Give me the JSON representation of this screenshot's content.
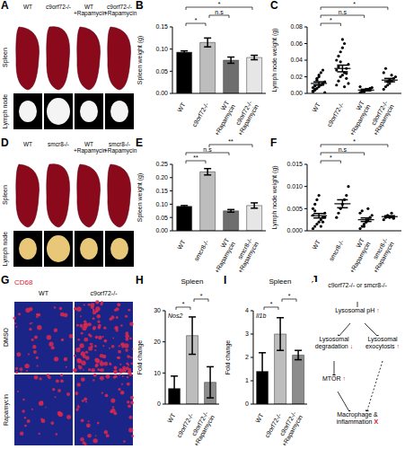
{
  "chart_data": [
    {
      "panel": "B",
      "type": "bar",
      "categories": [
        "WT",
        "c9orf72-/-",
        "WT +Rapamycin",
        "c9orf72-/- +Rapamycin"
      ],
      "values": [
        0.093,
        0.115,
        0.075,
        0.081
      ],
      "errors": [
        0.003,
        0.01,
        0.007,
        0.005
      ],
      "colors": [
        "#000000",
        "#bdbdbd",
        "#6e6e6e",
        "#e6e6e6"
      ],
      "ylabel": "Spleen weight (g)",
      "ylim": [
        0,
        0.15
      ],
      "yticks": [
        {
          "value": 0,
          "label": "0.00"
        },
        {
          "value": 0.05,
          "label": "0.05"
        },
        {
          "value": 0.1,
          "label": "0.10"
        },
        {
          "value": 0.15,
          "label": "0.15"
        }
      ],
      "significance": [
        {
          "from": 0,
          "to": 1,
          "label": "*"
        },
        {
          "from": 1,
          "to": 2,
          "label": "n.s"
        },
        {
          "from": 0,
          "to": 3,
          "label": "*"
        }
      ]
    },
    {
      "panel": "C",
      "type": "scatter",
      "categories": [
        "WT",
        "c9orf72-/-",
        "WT +Rapamycin",
        "c9orf72-/- +Rapamycin"
      ],
      "points": [
        [
          0.002,
          0.004,
          0.006,
          0.008,
          0.01,
          0.012,
          0.014,
          0.003,
          0.005,
          0.018,
          0.022,
          0.025,
          0.028,
          0.001,
          0.007,
          0.009,
          0.016,
          0.02
        ],
        [
          0.01,
          0.015,
          0.02,
          0.022,
          0.025,
          0.03,
          0.035,
          0.04,
          0.045,
          0.05,
          0.055,
          0.06,
          0.018,
          0.012,
          0.028,
          0.032,
          0.038,
          0.065,
          0.008,
          0.024
        ],
        [
          0.001,
          0.002,
          0.003,
          0.004,
          0.005,
          0.006,
          0.007,
          0.008,
          0.003,
          0.002,
          0.005,
          0.004
        ],
        [
          0.005,
          0.008,
          0.01,
          0.012,
          0.015,
          0.018,
          0.02,
          0.025,
          0.03,
          0.014,
          0.016,
          0.022
        ]
      ],
      "mean": [
        0.012,
        0.03,
        0.004,
        0.016
      ],
      "sem": [
        0.002,
        0.004,
        0.001,
        0.002
      ],
      "color": "#000000",
      "ylabel": "Lymph node weight (g)",
      "ylim": [
        0,
        0.08
      ],
      "yticks": [
        {
          "value": 0,
          "label": "0.00"
        },
        {
          "value": 0.02,
          "label": "0.02"
        },
        {
          "value": 0.04,
          "label": "0.04"
        },
        {
          "value": 0.06,
          "label": "0.06"
        },
        {
          "value": 0.08,
          "label": "0.08"
        }
      ],
      "significance": [
        {
          "from": 0,
          "to": 1,
          "label": "*"
        },
        {
          "from": 0,
          "to": 2,
          "label": "n.s"
        },
        {
          "from": 0,
          "to": 3,
          "label": "*"
        }
      ]
    },
    {
      "panel": "E",
      "type": "bar",
      "categories": [
        "WT",
        "smcr8-/-",
        "WT +Rapamycin",
        "smcr8-/- +Rapamycin"
      ],
      "values": [
        0.092,
        0.222,
        0.075,
        0.095
      ],
      "errors": [
        0.003,
        0.012,
        0.005,
        0.01
      ],
      "colors": [
        "#000000",
        "#bdbdbd",
        "#6e6e6e",
        "#e6e6e6"
      ],
      "ylabel": "Spleen weight (g)",
      "ylim": [
        0,
        0.25
      ],
      "yticks": [
        {
          "value": 0,
          "label": "0.00"
        },
        {
          "value": 0.05,
          "label": "0.05"
        },
        {
          "value": 0.1,
          "label": "0.10"
        },
        {
          "value": 0.15,
          "label": "0.15"
        },
        {
          "value": 0.2,
          "label": "0.20"
        },
        {
          "value": 0.25,
          "label": "0.25"
        }
      ],
      "significance": [
        {
          "from": 0,
          "to": 1,
          "label": "**"
        },
        {
          "from": 0,
          "to": 2,
          "label": "n.s"
        },
        {
          "from": 1,
          "to": 3,
          "label": "**"
        }
      ]
    },
    {
      "panel": "F",
      "type": "scatter",
      "categories": [
        "WT",
        "smcr8-/-",
        "WT +Rapamycin",
        "smcr8-/- +Rapamycin"
      ],
      "points": [
        [
          0.0005,
          0.001,
          0.0015,
          0.002,
          0.0025,
          0.003,
          0.004,
          0.005,
          0.006,
          0.007,
          0.008,
          0.001,
          0.002,
          0.003,
          0.0035,
          0.0045
        ],
        [
          0.003,
          0.004,
          0.005,
          0.006,
          0.007,
          0.008,
          0.01
        ],
        [
          0.0005,
          0.001,
          0.0015,
          0.002,
          0.0025,
          0.003,
          0.0035,
          0.004,
          0.0045,
          0.001,
          0.002,
          0.005
        ],
        [
          0.0025,
          0.003,
          0.0035,
          0.003,
          0.004,
          0.0028
        ]
      ],
      "mean": [
        0.0034,
        0.0061,
        0.0025,
        0.0032
      ],
      "sem": [
        0.0005,
        0.0009,
        0.0004,
        0.0002
      ],
      "color": "#000000",
      "ylabel": "Lymph node weight (g)",
      "ylim": [
        0,
        0.015
      ],
      "yticks": [
        {
          "value": 0,
          "label": "0.000"
        },
        {
          "value": 0.005,
          "label": "0.005"
        },
        {
          "value": 0.01,
          "label": "0.010"
        },
        {
          "value": 0.015,
          "label": "0.015"
        }
      ],
      "significance": [
        {
          "from": 0,
          "to": 1,
          "label": "*"
        },
        {
          "from": 0,
          "to": 2,
          "label": "n.s"
        },
        {
          "from": 0,
          "to": 3,
          "label": "*"
        }
      ]
    },
    {
      "panel": "H",
      "type": "bar",
      "title": "Spleen",
      "annotation": "Nos2",
      "categories": [
        "WT",
        "c9orf72-/-",
        "c9orf72-/- +Rapamycin"
      ],
      "values": [
        5,
        22,
        7
      ],
      "errors": [
        4,
        6,
        5
      ],
      "colors": [
        "#000000",
        "#bdbdbd",
        "#8c8c8c"
      ],
      "ylabel": "Fold change",
      "ylim": [
        0,
        30
      ],
      "yticks": [
        0,
        10,
        20,
        30
      ],
      "significance": [
        {
          "from": 0,
          "to": 1,
          "label": "*"
        },
        {
          "from": 1,
          "to": 2,
          "label": "*"
        }
      ]
    },
    {
      "panel": "I",
      "type": "bar",
      "title": "Spleen",
      "annotation": "Il1b",
      "categories": [
        "WT",
        "c9orf72-/-",
        "c9orf72-/- +Rapamycin"
      ],
      "values": [
        1.4,
        3.0,
        2.1
      ],
      "errors": [
        0.8,
        0.7,
        0.2
      ],
      "colors": [
        "#000000",
        "#bdbdbd",
        "#8c8c8c"
      ],
      "ylabel": "Fold change",
      "ylim": [
        0,
        4
      ],
      "yticks": [
        0,
        1,
        2,
        3,
        4
      ],
      "significance": [
        {
          "from": 0,
          "to": 1,
          "label": "*"
        },
        {
          "from": 1,
          "to": 2,
          "label": "*"
        }
      ]
    }
  ],
  "image_panels": [
    {
      "panel": "A",
      "columns": [
        "WT",
        "c9orf72-/-",
        "WT +Rapamycin",
        "c9orf72-/- +Rapamycin"
      ],
      "rows": [
        "Spleen",
        "Lymph node"
      ]
    },
    {
      "panel": "D",
      "columns": [
        "WT",
        "smcr8-/-",
        "WT +Rapamycin",
        "smcr8-/- +Rapamycin"
      ],
      "rows": [
        "Spleen",
        "Lymph node"
      ]
    },
    {
      "panel": "G",
      "stain": "CD68",
      "columns": [
        "WT",
        "c9orf72-/-"
      ],
      "rows": [
        "DMSO",
        "Rapamycin"
      ]
    }
  ],
  "diagram": {
    "panel": "J",
    "nodes": [
      {
        "label": "c9orf72-/- or smcr8-/-",
        "change": null
      },
      {
        "label": "Lysosomal pH",
        "change": "↑"
      },
      {
        "label": "Lysosomal degradation",
        "change": "↓"
      },
      {
        "label": "Lysosomal exocytosis",
        "change": "↑"
      },
      {
        "label": "MTOR",
        "change": "↑"
      },
      {
        "label": "Macrophage & inflammation",
        "change": "X"
      }
    ]
  }
}
